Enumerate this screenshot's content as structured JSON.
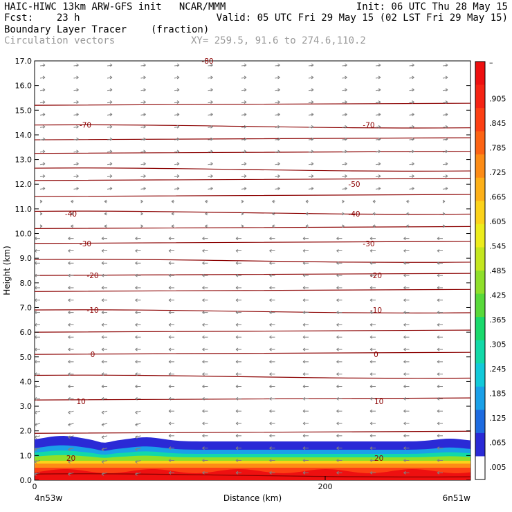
{
  "header": {
    "line1_left": "HAIC-HIWC 13km ARW-GFS init   NCAR/MMM",
    "line1_right": "Init: 06 UTC Thu 28 May 15",
    "line2_left": "Fcst:    23 h",
    "line2_right": "Valid: 05 UTC Fri 29 May 15 (02 LST Fri 29 May 15)",
    "line3_left": "Boundary Layer Tracer",
    "line3_mid": "(fraction)",
    "line4_left": "Circulation vectors",
    "line4_mid": "XY= 259.5, 91.6 to 274.6,110.2"
  },
  "colors": {
    "contour": "#8b0000",
    "vector": "#808080",
    "colorbar": [
      "#ffffff",
      "#2a2ad6",
      "#1e6be0",
      "#1aa0e8",
      "#12c9d9",
      "#12d9a8",
      "#1ad96c",
      "#58d93a",
      "#8fdf2a",
      "#c4e61f",
      "#ecec1c",
      "#fbd21a",
      "#fdb018",
      "#fd8c16",
      "#fd6414",
      "#fc4014",
      "#f52414",
      "#ee1010"
    ]
  },
  "chart_data": {
    "type": "heatmap",
    "xlabel": "Distance (km)",
    "ylabel": "Height (km)",
    "xlim": [
      0,
      300
    ],
    "ylim": [
      0,
      17
    ],
    "xticks": [
      "0",
      "200"
    ],
    "x_end_labels": [
      "4n53w",
      "6n51w"
    ],
    "yticks": [
      "0.0",
      "1.0",
      "2.0",
      "3.0",
      "4.0",
      "5.0",
      "6.0",
      "7.0",
      "8.0",
      "9.0",
      "10.0",
      "11.0",
      "12.0",
      "13.0",
      "14.0",
      "15.0",
      "16.0",
      "17.0"
    ],
    "colorbar_labels": [
      "–",
      ".905",
      ".845",
      ".785",
      ".725",
      ".665",
      ".605",
      ".545",
      ".485",
      ".425",
      ".365",
      ".305",
      ".245",
      ".185",
      ".125",
      ".065",
      ".005"
    ],
    "contour_labels": [
      {
        "text": "-70",
        "x": 35,
        "y": 14.4
      },
      {
        "text": "-70",
        "x": 230,
        "y": 14.4
      },
      {
        "text": "-50",
        "x": 220,
        "y": 12.0
      },
      {
        "text": "-40",
        "x": 25,
        "y": 10.8
      },
      {
        "text": "-40",
        "x": 220,
        "y": 10.8
      },
      {
        "text": "-30",
        "x": 35,
        "y": 9.6
      },
      {
        "text": "-30",
        "x": 230,
        "y": 9.6
      },
      {
        "text": "-20",
        "x": 40,
        "y": 8.3
      },
      {
        "text": "-20",
        "x": 235,
        "y": 8.3
      },
      {
        "text": "-10",
        "x": 40,
        "y": 6.9
      },
      {
        "text": "-10",
        "x": 235,
        "y": 6.9
      },
      {
        "text": "0",
        "x": 40,
        "y": 5.1
      },
      {
        "text": "0",
        "x": 235,
        "y": 5.1
      },
      {
        "text": "10",
        "x": 32,
        "y": 3.2
      },
      {
        "text": "10",
        "x": 237,
        "y": 3.2
      },
      {
        "text": "20",
        "x": 25,
        "y": 0.9
      },
      {
        "text": "20",
        "x": 237,
        "y": 0.9
      }
    ],
    "top_partial_label": "-80"
  }
}
